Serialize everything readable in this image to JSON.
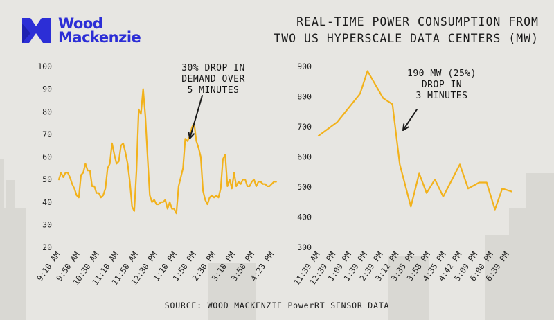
{
  "brand": {
    "line1": "Wood",
    "line2": "Mackenzie",
    "color": "#2c2ed6"
  },
  "headline": {
    "line1": "REAL-TIME POWER CONSUMPTION FROM",
    "line2": "TWO US HYPERSCALE DATA CENTERS (MW)"
  },
  "source": "SOURCE: WOOD MACKENZIE PowerRT SENSOR DATA",
  "line_color": "#f2b21c",
  "chart_data": [
    {
      "type": "line",
      "ylim": [
        20,
        100
      ],
      "yticks": [
        20,
        30,
        40,
        50,
        60,
        70,
        80,
        90,
        100
      ],
      "xticks": [
        "9:10 AM",
        "9:50 AM",
        "10:30 AM",
        "11:10 AM",
        "11:50 AM",
        "12:30 PM",
        "1:10 PM",
        "1:50 PM",
        "2:30 PM",
        "3:10 PM",
        "3:50 PM",
        "4:23 PM"
      ],
      "xlim": [
        0,
        99
      ],
      "annotation": [
        "30% DROP IN",
        "DEMAND OVER",
        "5 MINUTES"
      ],
      "x": [
        0,
        1,
        2,
        3,
        4,
        5,
        6,
        7,
        8,
        9,
        10,
        11,
        12,
        13,
        14,
        15,
        16,
        17,
        18,
        19,
        20,
        21,
        22,
        23,
        24,
        25,
        26,
        27,
        28,
        29,
        30,
        31,
        32,
        33,
        34,
        35,
        36,
        37,
        38,
        39,
        40,
        41,
        42,
        43,
        44,
        45,
        46,
        47,
        48,
        49,
        50,
        51,
        52,
        53,
        54,
        55,
        56,
        57,
        58,
        59,
        60,
        61,
        62,
        63,
        64,
        65,
        66,
        67,
        68,
        69,
        70,
        71,
        72,
        73,
        74,
        75,
        76,
        77,
        78,
        79,
        80,
        81,
        82,
        83,
        84,
        85,
        86,
        87,
        88,
        89,
        90,
        91,
        92,
        93,
        94,
        95,
        96,
        97,
        98
      ],
      "y": [
        50,
        53,
        51,
        53,
        53,
        51,
        48,
        46,
        43,
        42,
        52,
        53,
        57,
        54,
        54,
        47,
        47,
        44,
        44,
        42,
        43,
        46,
        55,
        57,
        66,
        61,
        57,
        58,
        65,
        66,
        62,
        57,
        49,
        38,
        36,
        54,
        81,
        79,
        90,
        78,
        60,
        43,
        40,
        41,
        39,
        39,
        40,
        40,
        41,
        37,
        40,
        37,
        37,
        35,
        47,
        51,
        55,
        68,
        67,
        69,
        73,
        75,
        67,
        64,
        60,
        45,
        41,
        39,
        42,
        43,
        42,
        43,
        42,
        46,
        59,
        61,
        47,
        50,
        46,
        53,
        47,
        49,
        48,
        50,
        50,
        47,
        47,
        49,
        50,
        47,
        49,
        49,
        48,
        48,
        47,
        47,
        48,
        49,
        49
      ]
    },
    {
      "type": "line",
      "ylim": [
        300,
        900
      ],
      "yticks": [
        300,
        400,
        500,
        600,
        700,
        800,
        900
      ],
      "xticks": [
        "11:39 AM",
        "12:39 PM",
        "1:09 PM",
        "1:39 PM",
        "2:39 PM",
        "3:12 PM",
        "3:35 PM",
        "3:58 PM",
        "4:35 PM",
        "4:42 PM",
        "5:09 PM",
        "6:00 PM",
        "6:39 PM"
      ],
      "xlim": [
        0,
        21
      ],
      "annotation": [
        "190 MW (25%)",
        "DROP IN",
        "3 MINUTES"
      ],
      "x": [
        0,
        2,
        4.5,
        5.3,
        7,
        8,
        8.8,
        10,
        10.9,
        11.7,
        12.6,
        13.5,
        15.3,
        16.2,
        17.4,
        18.2,
        19.1,
        19.9,
        20.9
      ],
      "y": [
        670,
        715,
        810,
        885,
        795,
        775,
        575,
        435,
        545,
        480,
        525,
        468,
        575,
        495,
        515,
        515,
        425,
        495,
        485
      ]
    }
  ]
}
